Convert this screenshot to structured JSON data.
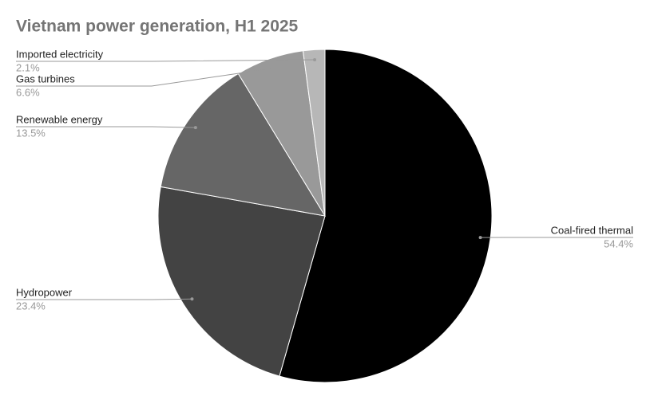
{
  "chart_data": {
    "type": "pie",
    "title": "Vietnam power generation, H1 2025",
    "categories": [
      "Coal-fired thermal",
      "Hydropower",
      "Renewable energy",
      "Gas turbines",
      "Imported electricity"
    ],
    "values": [
      54.4,
      23.4,
      13.5,
      6.6,
      2.1
    ],
    "value_labels": [
      "54.4%",
      "23.4%",
      "13.5%",
      "6.6%",
      "2.1%"
    ],
    "colors": [
      "#000000",
      "#434343",
      "#666666",
      "#999999",
      "#b7b7b7"
    ]
  }
}
